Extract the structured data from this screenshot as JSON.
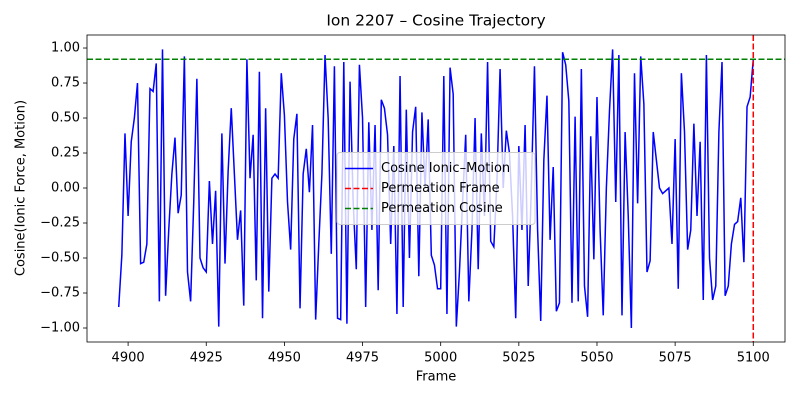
{
  "chart_data": {
    "type": "line",
    "title": "Ion 2207 – Cosine Trajectory",
    "x_label": "Frame",
    "y_label": "Cosine(Ionic Force, Motion)",
    "x": [
      4897,
      4898,
      4899,
      4900,
      4901,
      4902,
      4903,
      4904,
      4905,
      4906,
      4907,
      4908,
      4909,
      4910,
      4911,
      4912,
      4913,
      4914,
      4915,
      4916,
      4917,
      4918,
      4919,
      4920,
      4921,
      4922,
      4923,
      4924,
      4925,
      4926,
      4927,
      4928,
      4929,
      4930,
      4931,
      4932,
      4933,
      4934,
      4935,
      4936,
      4937,
      4938,
      4939,
      4940,
      4941,
      4942,
      4943,
      4944,
      4945,
      4946,
      4947,
      4948,
      4949,
      4950,
      4951,
      4952,
      4953,
      4954,
      4955,
      4956,
      4957,
      4958,
      4959,
      4960,
      4961,
      4962,
      4963,
      4964,
      4965,
      4966,
      4967,
      4968,
      4969,
      4970,
      4971,
      4972,
      4973,
      4974,
      4975,
      4976,
      4977,
      4978,
      4979,
      4980,
      4981,
      4982,
      4983,
      4984,
      4985,
      4986,
      4987,
      4988,
      4989,
      4990,
      4991,
      4992,
      4993,
      4994,
      4995,
      4996,
      4997,
      4998,
      4999,
      5000,
      5001,
      5002,
      5003,
      5004,
      5005,
      5006,
      5007,
      5008,
      5009,
      5010,
      5011,
      5012,
      5013,
      5014,
      5015,
      5016,
      5017,
      5018,
      5019,
      5020,
      5021,
      5022,
      5023,
      5024,
      5025,
      5026,
      5027,
      5028,
      5029,
      5030,
      5031,
      5032,
      5033,
      5034,
      5035,
      5036,
      5037,
      5038,
      5039,
      5040,
      5041,
      5042,
      5043,
      5044,
      5045,
      5046,
      5047,
      5048,
      5049,
      5050,
      5051,
      5052,
      5053,
      5054,
      5055,
      5056,
      5057,
      5058,
      5059,
      5060,
      5061,
      5062,
      5063,
      5064,
      5065,
      5066,
      5067,
      5068,
      5069,
      5070,
      5071,
      5072,
      5073,
      5074,
      5075,
      5076,
      5077,
      5078,
      5079,
      5080,
      5081,
      5082,
      5083,
      5084,
      5085,
      5086,
      5087,
      5088,
      5089,
      5090,
      5091,
      5092,
      5093,
      5094,
      5095,
      5096,
      5097,
      5098,
      5099,
      5100
    ],
    "series": [
      {
        "name": "Cosine Ionic–Motion",
        "color": "#0000ff",
        "values": [
          -0.85,
          -0.48,
          0.39,
          -0.2,
          0.33,
          0.5,
          0.75,
          -0.54,
          -0.53,
          -0.4,
          0.71,
          0.69,
          0.89,
          -0.81,
          0.99,
          -0.77,
          -0.3,
          0.1,
          0.36,
          -0.18,
          -0.05,
          0.94,
          -0.6,
          -0.81,
          -0.1,
          0.78,
          -0.5,
          -0.57,
          -0.6,
          0.05,
          -0.4,
          -0.02,
          -0.99,
          0.39,
          -0.54,
          0.12,
          0.57,
          0.1,
          -0.37,
          -0.16,
          -0.84,
          0.92,
          0.07,
          0.38,
          -0.66,
          0.83,
          -0.93,
          0.57,
          -0.74,
          0.07,
          0.1,
          0.07,
          0.82,
          0.52,
          -0.1,
          -0.44,
          0.35,
          0.53,
          -0.86,
          0.1,
          0.28,
          -0.03,
          0.45,
          -0.94,
          -0.4,
          0.1,
          0.95,
          0.5,
          -0.47,
          0.87,
          -0.93,
          -0.94,
          0.9,
          -0.97,
          0.76,
          -0.1,
          -0.58,
          0.88,
          0.5,
          -0.85,
          0.47,
          -0.3,
          0.45,
          -0.73,
          0.63,
          0.57,
          0.38,
          -0.4,
          0.3,
          -0.9,
          0.8,
          -0.85,
          0.56,
          -0.5,
          0.4,
          0.58,
          -0.63,
          0.54,
          0.0,
          0.49,
          -0.48,
          -0.55,
          -0.72,
          -0.72,
          0.8,
          -0.9,
          0.86,
          0.67,
          -0.99,
          -0.6,
          -0.1,
          0.38,
          -0.81,
          -0.3,
          0.5,
          -0.58,
          0.39,
          -0.2,
          0.9,
          -0.38,
          -0.42,
          0.05,
          0.85,
          0.0,
          0.41,
          0.25,
          -0.2,
          -0.93,
          0.3,
          -0.3,
          0.45,
          -0.7,
          0.0,
          0.87,
          -0.3,
          -0.95,
          0.2,
          0.66,
          -0.37,
          0.15,
          -0.88,
          -0.82,
          0.97,
          0.88,
          0.62,
          -0.82,
          0.51,
          -0.81,
          0.85,
          -0.7,
          -0.92,
          0.37,
          -0.51,
          0.65,
          -0.3,
          -0.91,
          0.0,
          0.55,
          0.99,
          -0.1,
          0.95,
          -0.91,
          0.4,
          -0.2,
          -1.0,
          0.82,
          -0.11,
          0.94,
          0.6,
          -0.6,
          -0.52,
          0.4,
          0.2,
          0.0,
          -0.04,
          -0.02,
          0.0,
          -0.4,
          0.35,
          -0.72,
          0.82,
          0.4,
          -0.44,
          -0.3,
          0.46,
          -0.2,
          0.33,
          -0.8,
          0.95,
          -0.5,
          -0.8,
          -0.7,
          0.4,
          0.9,
          -0.77,
          -0.7,
          -0.4,
          -0.26,
          -0.24,
          -0.07,
          -0.53,
          0.58,
          0.65,
          0.92
        ]
      }
    ],
    "reference_lines": [
      {
        "name": "Permeation Frame",
        "color": "#ff0000",
        "orientation": "vertical",
        "value": 5100
      },
      {
        "name": "Permeation Cosine",
        "color": "#008000",
        "orientation": "horizontal",
        "value": 0.92
      }
    ],
    "xlim": [
      4886.85,
      5110.15
    ],
    "xticks": [
      4900,
      4925,
      4950,
      4975,
      5000,
      5025,
      5050,
      5075,
      5100
    ],
    "ylim": [
      -1.1,
      1.093
    ],
    "yticks": [
      {
        "value": -1,
        "label": "−1.00"
      },
      {
        "value": -0.75,
        "label": "−0.75"
      },
      {
        "value": -0.5,
        "label": "−0.50"
      },
      {
        "value": -0.25,
        "label": "−0.25"
      },
      {
        "value": 0,
        "label": "0.00"
      },
      {
        "value": 0.25,
        "label": "0.25"
      },
      {
        "value": 0.5,
        "label": "0.50"
      },
      {
        "value": 0.75,
        "label": "0.75"
      },
      {
        "value": 1,
        "label": "1.00"
      }
    ],
    "legend": "center"
  }
}
